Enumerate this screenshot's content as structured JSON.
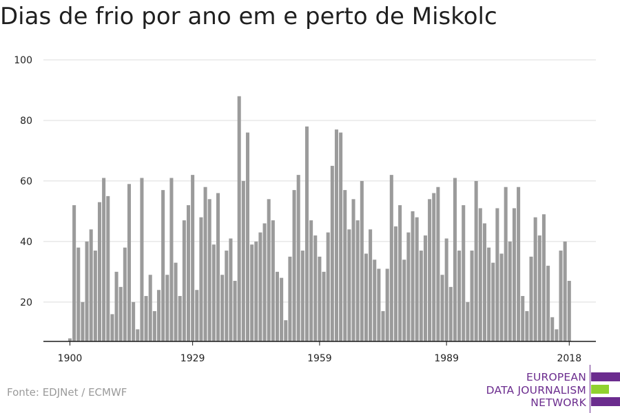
{
  "title": "Dias de frio por ano em e perto de Miskolc",
  "source": "Fonte: EDJNet / ECMWF",
  "logo": {
    "lines": [
      "EUROPEAN",
      "DATA JOURNALISM",
      "NETWORK"
    ],
    "colors": {
      "purple": "#6b2c8e",
      "green": "#8fd12e"
    }
  },
  "chart_data": {
    "type": "bar",
    "bar_color": "#9b9b9b",
    "ylim": [
      7,
      100
    ],
    "yticks": [
      20,
      40,
      60,
      80,
      100
    ],
    "xticks": [
      1900,
      1929,
      1959,
      1989,
      2018
    ],
    "grid": true,
    "x": [
      1900,
      1901,
      1902,
      1903,
      1904,
      1905,
      1906,
      1907,
      1908,
      1909,
      1910,
      1911,
      1912,
      1913,
      1914,
      1915,
      1916,
      1917,
      1918,
      1919,
      1920,
      1921,
      1922,
      1923,
      1924,
      1925,
      1926,
      1927,
      1928,
      1929,
      1930,
      1931,
      1932,
      1933,
      1934,
      1935,
      1936,
      1937,
      1938,
      1939,
      1940,
      1941,
      1942,
      1943,
      1944,
      1945,
      1946,
      1947,
      1948,
      1949,
      1950,
      1951,
      1952,
      1953,
      1954,
      1955,
      1956,
      1957,
      1958,
      1959,
      1960,
      1961,
      1962,
      1963,
      1964,
      1965,
      1966,
      1967,
      1968,
      1969,
      1970,
      1971,
      1972,
      1973,
      1974,
      1975,
      1976,
      1977,
      1978,
      1979,
      1980,
      1981,
      1982,
      1983,
      1984,
      1985,
      1986,
      1987,
      1988,
      1989,
      1990,
      1991,
      1992,
      1993,
      1994,
      1995,
      1996,
      1997,
      1998,
      1999,
      2000,
      2001,
      2002,
      2003,
      2004,
      2005,
      2006,
      2007,
      2008,
      2009,
      2010,
      2011,
      2012,
      2013,
      2014,
      2015,
      2016,
      2017,
      2018
    ],
    "values": [
      8,
      52,
      38,
      20,
      40,
      44,
      37,
      53,
      61,
      55,
      16,
      30,
      25,
      38,
      59,
      20,
      11,
      61,
      22,
      29,
      17,
      24,
      57,
      29,
      61,
      33,
      22,
      47,
      52,
      62,
      24,
      48,
      58,
      54,
      39,
      56,
      29,
      37,
      41,
      27,
      88,
      60,
      76,
      39,
      40,
      43,
      46,
      54,
      47,
      30,
      28,
      14,
      35,
      57,
      62,
      37,
      78,
      47,
      42,
      35,
      30,
      43,
      65,
      77,
      76,
      57,
      44,
      54,
      47,
      60,
      36,
      44,
      34,
      31,
      17,
      31,
      62,
      45,
      52,
      34,
      43,
      50,
      48,
      37,
      42,
      54,
      56,
      58,
      29,
      41,
      25,
      61,
      37,
      52,
      20,
      37,
      60,
      51,
      46,
      38,
      33,
      51,
      36,
      58,
      40,
      51,
      58,
      22,
      17,
      35,
      48,
      42,
      49,
      32,
      15,
      11,
      37,
      40,
      27
    ]
  }
}
